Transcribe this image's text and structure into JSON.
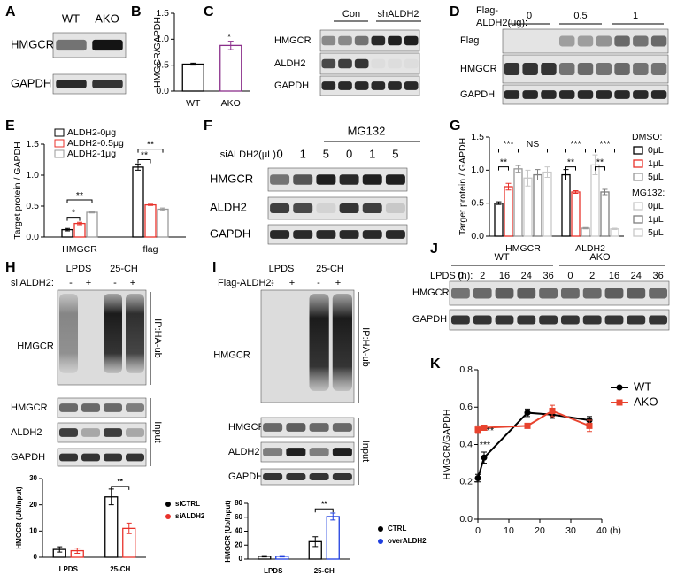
{
  "blots": {
    "A": {
      "label": "A",
      "lanes": [
        "WT",
        "AKO"
      ],
      "rows": [
        "HMGCR",
        "GAPDH"
      ]
    },
    "C": {
      "label": "C",
      "groups": [
        "Con",
        "shALDH2"
      ],
      "rows": [
        "HMGCR",
        "ALDH2",
        "GAPDH"
      ]
    },
    "D": {
      "label": "D",
      "treatment": [
        "Flag-",
        "ALDH2(ug):"
      ],
      "doses": [
        "0",
        "0.5",
        "1"
      ],
      "rows": [
        "Flag",
        "HMGCR",
        "GAPDH"
      ]
    },
    "F": {
      "label": "F",
      "treatment": "siALDH2(μL):",
      "lanes": [
        "0",
        "1",
        "5",
        "0",
        "1",
        "5"
      ],
      "group": "MG132",
      "rows": [
        "HMGCR",
        "ALDH2",
        "GAPDH"
      ]
    },
    "H": {
      "label": "H",
      "groups": [
        "LPDS",
        "25-CH"
      ],
      "treatment": "si ALDH2:",
      "signs": [
        "-",
        "+",
        "-",
        "+"
      ],
      "ip_row": "HMGCR",
      "side_labels": [
        "IP:HA-ub",
        "Input"
      ],
      "rows": [
        "HMGCR",
        "ALDH2",
        "GAPDH"
      ]
    },
    "I": {
      "label": "I",
      "groups": [
        "LPDS",
        "25-CH"
      ],
      "treatment": "Flag-ALDH2:",
      "signs": [
        "-",
        "+",
        "-",
        "+"
      ],
      "ip_row": "HMGCR",
      "side_labels": [
        "IP:HA-ub",
        "Input"
      ],
      "rows": [
        "HMGCR",
        "ALDH2",
        "GAPDH"
      ]
    },
    "J": {
      "label": "J",
      "groups": [
        "WT",
        "AKO"
      ],
      "treatment": "LPDS (h):",
      "lanes": [
        "0",
        "2",
        "16",
        "24",
        "36",
        "0",
        "2",
        "16",
        "24",
        "36"
      ],
      "rows": [
        "HMGCR",
        "GAPDH"
      ]
    }
  },
  "chart_data": [
    {
      "type": "bar",
      "panel": "B",
      "y_label": "HMGCR/GAPDH",
      "categories": [
        "WT",
        "AKO"
      ],
      "values": [
        0.52,
        0.88
      ],
      "errors": [
        0.02,
        0.08
      ],
      "colors": [
        "#000000",
        "#8b2f8b"
      ],
      "ylim": [
        0,
        1.5
      ],
      "yticks": [
        {
          "value": 0,
          "label": "0.0"
        },
        0.5,
        {
          "value": 1,
          "label": "1.0"
        },
        1.5
      ],
      "annotations": [
        "*"
      ]
    },
    {
      "type": "bar",
      "panel": "E",
      "y_label": "Target protein / GAPDH",
      "categories": [
        "HMGCR",
        "flag"
      ],
      "series": [
        {
          "name": "ALDH2-0μg",
          "color": "#000000",
          "values": [
            0.12,
            1.13
          ],
          "errors": [
            0.02,
            0.05
          ]
        },
        {
          "name": "ALDH2-0.5μg",
          "color": "#e8322b",
          "values": [
            0.22,
            0.52
          ],
          "errors": [
            0.02,
            0.01
          ]
        },
        {
          "name": "ALDH2-1μg",
          "color": "#9a9a9a",
          "values": [
            0.4,
            0.45
          ],
          "errors": [
            0.01,
            0.02
          ]
        }
      ],
      "ylim": [
        0,
        1.5
      ],
      "yticks": [
        {
          "value": 0,
          "label": "0.0"
        },
        0.5,
        {
          "value": 1,
          "label": "1.0"
        },
        1.5
      ],
      "annotations": [
        "*",
        "**",
        "**",
        "**"
      ]
    },
    {
      "type": "bar",
      "panel": "G",
      "y_label": "Target protein / GAPDH",
      "categories": [
        "HMGCR",
        "ALDH2"
      ],
      "legend_titles": [
        "DMSO:",
        "MG132:"
      ],
      "series": [
        {
          "name": "0μL",
          "color": "#000000",
          "values": [
            0.5,
            0.93
          ],
          "errors": [
            0.02,
            0.08
          ]
        },
        {
          "name": "1μL",
          "color": "#e8322b",
          "values": [
            0.75,
            0.67
          ],
          "errors": [
            0.05,
            0.02
          ]
        },
        {
          "name": "5μL",
          "color": "#999999",
          "values": [
            1.02,
            0.12
          ],
          "errors": [
            0.05,
            0.01
          ]
        },
        {
          "name": "0μL",
          "color": "#c8c8c8",
          "values": [
            0.88,
            1.08
          ],
          "errors": [
            0.12,
            0.15
          ]
        },
        {
          "name": "1μL",
          "color": "#808080",
          "values": [
            0.93,
            0.67
          ],
          "errors": [
            0.08,
            0.04
          ]
        },
        {
          "name": "5μL",
          "color": "#c8c8c8",
          "values": [
            0.97,
            0.11
          ],
          "errors": [
            0.08,
            0.01
          ]
        }
      ],
      "ylim": [
        0,
        1.5
      ],
      "yticks": [
        {
          "value": 0,
          "label": "0.0"
        },
        0.5,
        {
          "value": 1,
          "label": "1.0"
        },
        1.5
      ],
      "annotations": [
        "**",
        "***",
        "NS",
        "***",
        "**",
        "***",
        "**"
      ]
    },
    {
      "type": "bar",
      "y_label": "HMGCR (Ub/Input)",
      "categories": [
        "LPDS",
        "25-CH"
      ],
      "series": [
        {
          "name": "siCTRL",
          "color": "#000000",
          "values": [
            3,
            23
          ],
          "errors": [
            1,
            3
          ]
        },
        {
          "name": "siALDH2",
          "color": "#e8322b",
          "values": [
            2.5,
            11
          ],
          "errors": [
            1,
            2
          ]
        }
      ],
      "ylim": [
        0,
        30
      ],
      "yticks": [
        0,
        10,
        20,
        30
      ],
      "annotations": [
        "**"
      ]
    },
    {
      "type": "bar",
      "y_label": "HMGCR (Ub/Input)",
      "categories": [
        "LPDS",
        "25-CH"
      ],
      "series": [
        {
          "name": "CTRL",
          "color": "#000000",
          "values": [
            4,
            25
          ],
          "errors": [
            1,
            7
          ]
        },
        {
          "name": "overALDH2",
          "color": "#1f3fe0",
          "values": [
            4,
            61
          ],
          "errors": [
            1,
            5
          ]
        }
      ],
      "ylim": [
        0,
        80
      ],
      "yticks": [
        0,
        20,
        40,
        60,
        80
      ],
      "annotations": [
        "**"
      ]
    },
    {
      "type": "line",
      "panel": "K",
      "y_label": "HMGCR/GAPDH",
      "x": [
        0,
        2,
        16,
        24,
        36
      ],
      "x_unit": "(h)",
      "series": [
        {
          "name": "WT",
          "color": "#000000",
          "marker": "circle",
          "values": [
            0.22,
            0.33,
            0.57,
            0.56,
            0.53
          ],
          "errors": [
            0.02,
            0.03,
            0.02,
            0.02,
            0.02
          ]
        },
        {
          "name": "AKO",
          "color": "#e8432e",
          "marker": "square",
          "values": [
            0.48,
            0.49,
            0.5,
            0.58,
            0.5
          ],
          "errors": [
            0.02,
            0.01,
            0.01,
            0.03,
            0.03
          ]
        }
      ],
      "xlim": [
        0,
        40
      ],
      "xticks": [
        0,
        10,
        20,
        30,
        40
      ],
      "ylim": [
        0,
        0.8
      ],
      "yticks": [
        {
          "value": 0,
          "label": "0.0"
        },
        0.2,
        0.4,
        0.6,
        0.8
      ],
      "annotations": [
        "**",
        "***"
      ]
    }
  ]
}
